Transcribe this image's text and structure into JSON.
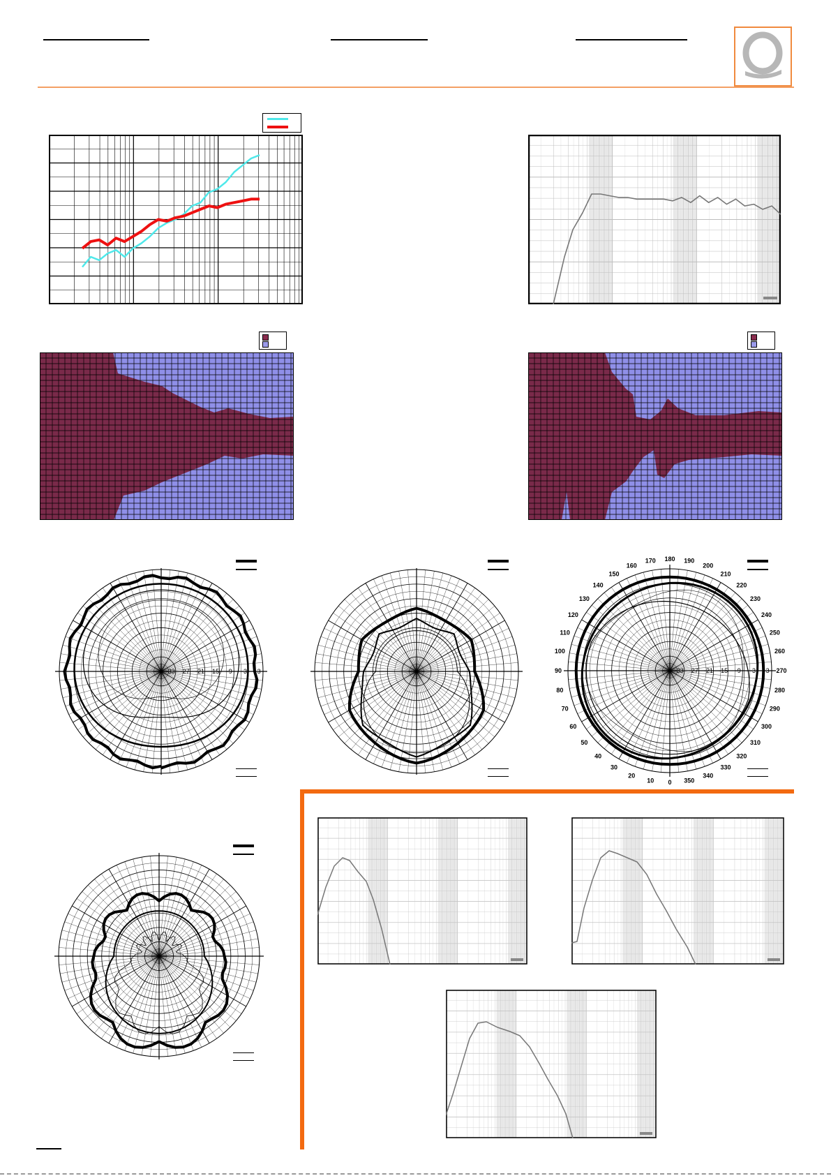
{
  "brand": {
    "accent_color": "#f08a3e",
    "frame_color": "#f36a10",
    "logo_icon": "q-logo-icon"
  },
  "chart_data": [
    {
      "type": "line",
      "grid": "log",
      "series": [
        {
          "color": "#4fe8ea",
          "values": [
            0.78,
            0.72,
            0.74,
            0.7,
            0.68,
            0.72,
            0.67,
            0.64,
            0.6,
            0.55,
            0.52,
            0.5,
            0.47,
            0.42,
            0.4,
            0.34,
            0.32,
            0.28,
            0.22,
            0.18,
            0.14,
            0.12
          ]
        },
        {
          "color": "#ee1111",
          "values": [
            0.67,
            0.63,
            0.62,
            0.65,
            0.61,
            0.63,
            0.6,
            0.57,
            0.53,
            0.5,
            0.51,
            0.49,
            0.48,
            0.46,
            0.44,
            0.42,
            0.43,
            0.41,
            0.4,
            0.39,
            0.38,
            0.38
          ]
        }
      ]
    },
    {
      "type": "line",
      "grid": "log",
      "values": [
        1.0,
        0.46,
        0.35,
        0.35,
        0.36,
        0.37,
        0.37,
        0.38,
        0.38,
        0.38,
        0.38,
        0.39,
        0.37,
        0.4,
        0.36,
        0.4,
        0.37,
        0.41,
        0.38,
        0.42,
        0.41,
        0.44,
        0.42,
        0.47
      ]
    },
    {
      "type": "heatmap",
      "colors": [
        "#7a2a4a",
        "#8f8fe8"
      ],
      "legend_colors": [
        "#8a2d4e",
        "#9b9bea"
      ]
    },
    {
      "type": "heatmap",
      "colors": [
        "#7a2a4a",
        "#8f8fe8"
      ],
      "legend_colors": [
        "#8a2d4e",
        "#9b9bea"
      ]
    },
    {
      "type": "polar",
      "tick_labels": [
        "3",
        "-3",
        "-9",
        "-15",
        "-21",
        "-27",
        "-33"
      ]
    },
    {
      "type": "polar"
    },
    {
      "type": "polar",
      "tick_labels": [
        "3",
        "-3",
        "-9",
        "-15",
        "-21",
        "-27",
        "-33"
      ],
      "angle_labels": [
        "0",
        "10",
        "20",
        "30",
        "40",
        "50",
        "60",
        "70",
        "80",
        "90",
        "100",
        "110",
        "120",
        "130",
        "140",
        "150",
        "160",
        "170",
        "180",
        "190",
        "200",
        "210",
        "220",
        "230",
        "240",
        "250",
        "260",
        "270",
        "280",
        "290",
        "300",
        "310",
        "320",
        "330",
        "340",
        "350"
      ]
    },
    {
      "type": "polar"
    },
    {
      "type": "line",
      "grid": "log"
    },
    {
      "type": "line",
      "grid": "log"
    },
    {
      "type": "line",
      "grid": "log"
    }
  ]
}
